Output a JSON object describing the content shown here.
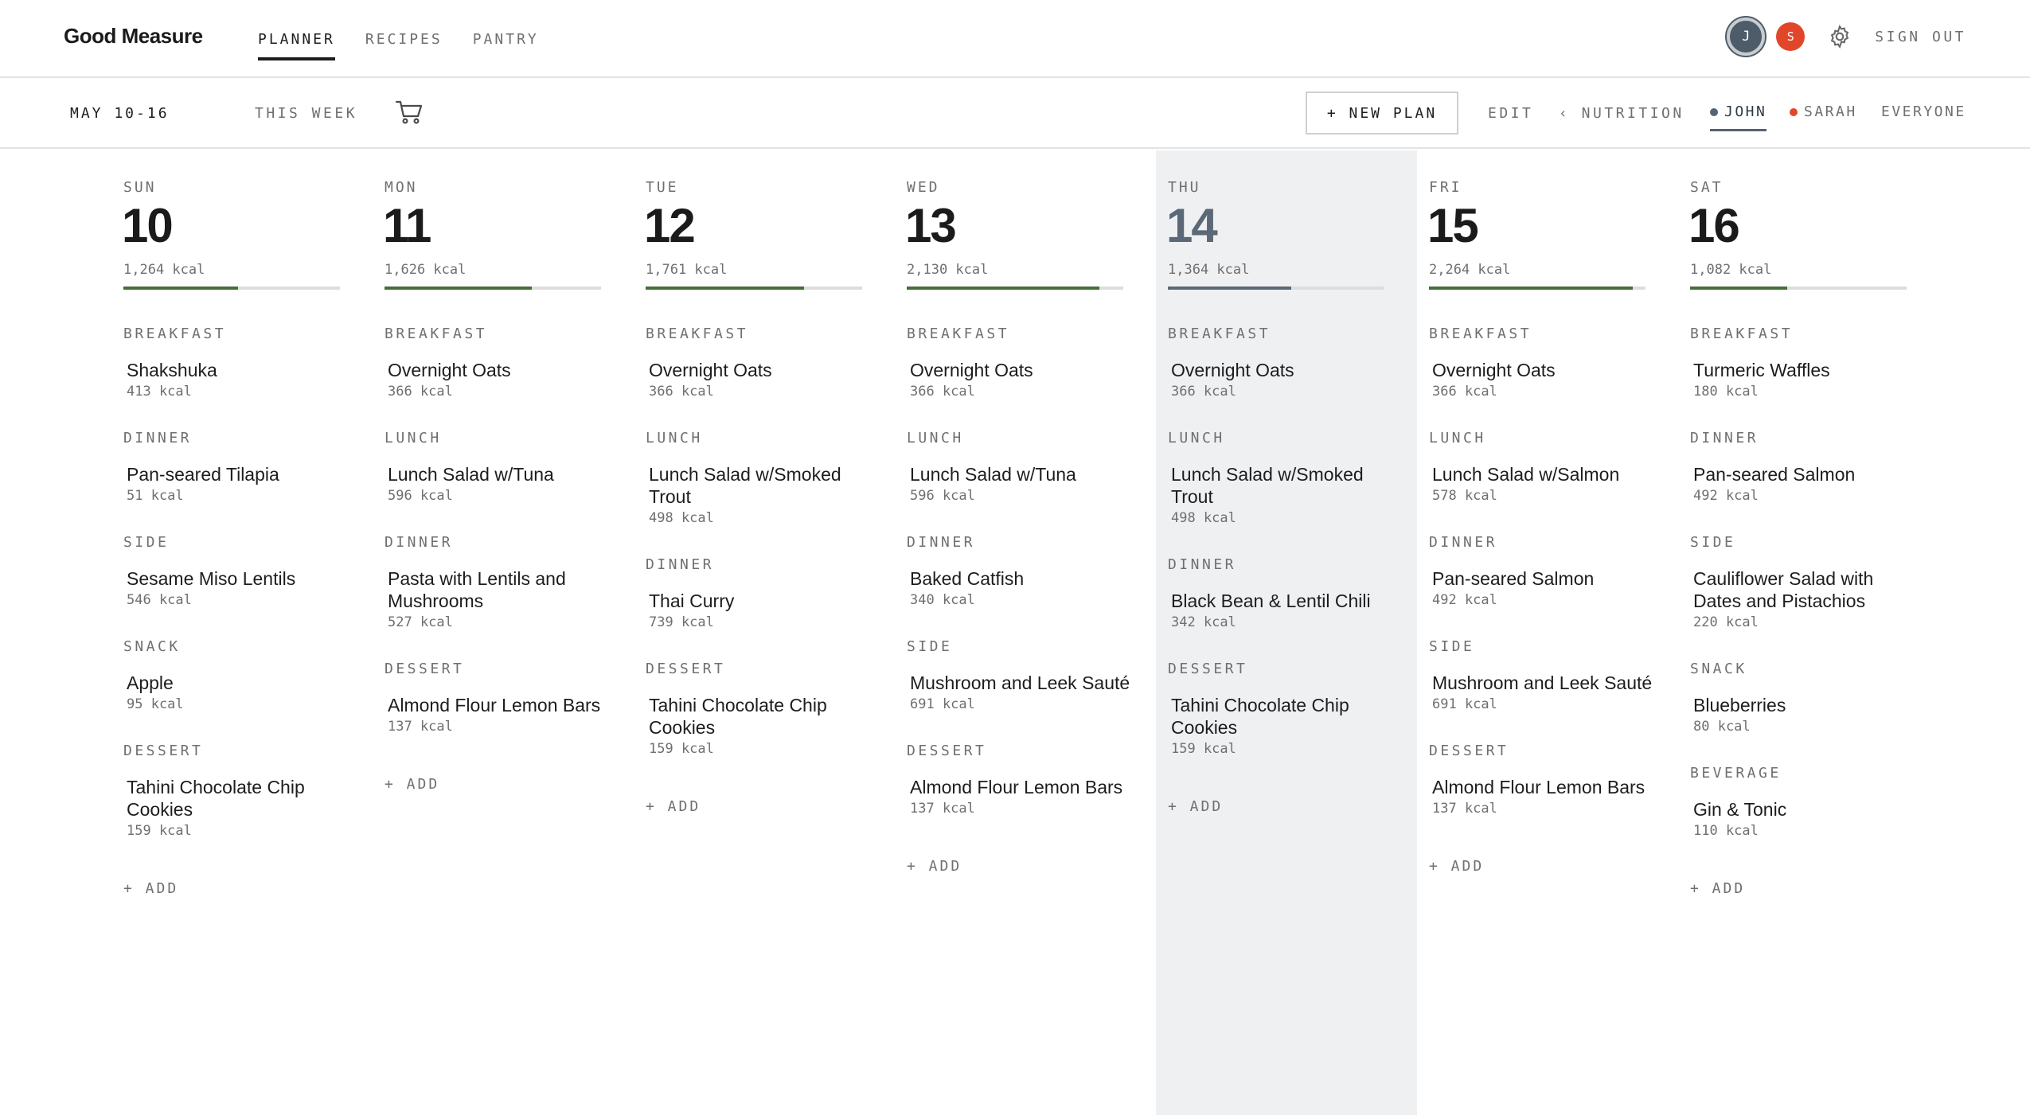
{
  "app": {
    "brand": "Good Measure"
  },
  "nav": {
    "tabs": [
      "PLANNER",
      "RECIPES",
      "PANTRY"
    ],
    "active": "PLANNER"
  },
  "user": {
    "avatars": [
      {
        "initial": "J",
        "color": "#4e5b68"
      },
      {
        "initial": "S",
        "color": "#e2462a"
      }
    ],
    "sign_out": "SIGN OUT"
  },
  "toolbar": {
    "date_range": "MAY 10-16",
    "this_week": "THIS WEEK",
    "new_plan": "+ NEW PLAN",
    "edit": "EDIT",
    "nutrition": "‹ NUTRITION",
    "people": [
      {
        "name": "JOHN",
        "dot_color": "#556372",
        "active": true
      },
      {
        "name": "SARAH",
        "dot_color": "#e2462a",
        "active": false
      },
      {
        "name": "EVERYONE",
        "dot_color": null,
        "active": false
      }
    ]
  },
  "add_label": "+ ADD",
  "days": [
    {
      "dow": "SUN",
      "num": "10",
      "kcal": "1,264 kcal",
      "progress": 0.53,
      "today": false,
      "meals": [
        {
          "label": "BREAKFAST",
          "items": [
            {
              "name": "Shakshuka",
              "kcal": "413 kcal"
            }
          ]
        },
        {
          "label": "DINNER",
          "items": [
            {
              "name": "Pan-seared Tilapia",
              "kcal": "51 kcal"
            }
          ]
        },
        {
          "label": "SIDE",
          "items": [
            {
              "name": "Sesame Miso Lentils",
              "kcal": "546 kcal"
            }
          ]
        },
        {
          "label": "SNACK",
          "items": [
            {
              "name": "Apple",
              "kcal": "95 kcal"
            }
          ]
        },
        {
          "label": "DESSERT",
          "items": [
            {
              "name": "Tahini Chocolate Chip Cookies",
              "kcal": "159 kcal"
            }
          ]
        }
      ]
    },
    {
      "dow": "MON",
      "num": "11",
      "kcal": "1,626 kcal",
      "progress": 0.68,
      "today": false,
      "meals": [
        {
          "label": "BREAKFAST",
          "items": [
            {
              "name": "Overnight Oats",
              "kcal": "366 kcal"
            }
          ]
        },
        {
          "label": "LUNCH",
          "items": [
            {
              "name": "Lunch Salad w/Tuna",
              "kcal": "596 kcal"
            }
          ]
        },
        {
          "label": "DINNER",
          "items": [
            {
              "name": "Pasta with Lentils and Mushrooms",
              "kcal": "527 kcal"
            }
          ]
        },
        {
          "label": "DESSERT",
          "items": [
            {
              "name": "Almond Flour Lemon Bars",
              "kcal": "137 kcal"
            }
          ]
        }
      ]
    },
    {
      "dow": "TUE",
      "num": "12",
      "kcal": "1,761 kcal",
      "progress": 0.73,
      "today": false,
      "meals": [
        {
          "label": "BREAKFAST",
          "items": [
            {
              "name": "Overnight Oats",
              "kcal": "366 kcal"
            }
          ]
        },
        {
          "label": "LUNCH",
          "items": [
            {
              "name": "Lunch Salad w/Smoked Trout",
              "kcal": "498 kcal"
            }
          ]
        },
        {
          "label": "DINNER",
          "items": [
            {
              "name": "Thai Curry",
              "kcal": "739 kcal"
            }
          ]
        },
        {
          "label": "DESSERT",
          "items": [
            {
              "name": "Tahini Chocolate Chip Cookies",
              "kcal": "159 kcal"
            }
          ]
        }
      ]
    },
    {
      "dow": "WED",
      "num": "13",
      "kcal": "2,130 kcal",
      "progress": 0.89,
      "today": false,
      "meals": [
        {
          "label": "BREAKFAST",
          "items": [
            {
              "name": "Overnight Oats",
              "kcal": "366 kcal"
            }
          ]
        },
        {
          "label": "LUNCH",
          "items": [
            {
              "name": "Lunch Salad w/Tuna",
              "kcal": "596 kcal"
            }
          ]
        },
        {
          "label": "DINNER",
          "items": [
            {
              "name": "Baked Catfish",
              "kcal": "340 kcal"
            }
          ]
        },
        {
          "label": "SIDE",
          "items": [
            {
              "name": "Mushroom and Leek Sauté",
              "kcal": "691 kcal"
            }
          ]
        },
        {
          "label": "DESSERT",
          "items": [
            {
              "name": "Almond Flour Lemon Bars",
              "kcal": "137 kcal"
            }
          ]
        }
      ]
    },
    {
      "dow": "THU",
      "num": "14",
      "kcal": "1,364 kcal",
      "progress": 0.57,
      "today": true,
      "meals": [
        {
          "label": "BREAKFAST",
          "items": [
            {
              "name": "Overnight Oats",
              "kcal": "366 kcal"
            }
          ]
        },
        {
          "label": "LUNCH",
          "items": [
            {
              "name": "Lunch Salad w/Smoked Trout",
              "kcal": "498 kcal"
            }
          ]
        },
        {
          "label": "DINNER",
          "items": [
            {
              "name": "Black Bean & Lentil Chili",
              "kcal": "342 kcal"
            }
          ]
        },
        {
          "label": "DESSERT",
          "items": [
            {
              "name": "Tahini Chocolate Chip Cookies",
              "kcal": "159 kcal"
            }
          ]
        }
      ]
    },
    {
      "dow": "FRI",
      "num": "15",
      "kcal": "2,264 kcal",
      "progress": 0.94,
      "today": false,
      "meals": [
        {
          "label": "BREAKFAST",
          "items": [
            {
              "name": "Overnight Oats",
              "kcal": "366 kcal"
            }
          ]
        },
        {
          "label": "LUNCH",
          "items": [
            {
              "name": "Lunch Salad w/Salmon",
              "kcal": "578 kcal"
            }
          ]
        },
        {
          "label": "DINNER",
          "items": [
            {
              "name": "Pan-seared Salmon",
              "kcal": "492 kcal"
            }
          ]
        },
        {
          "label": "SIDE",
          "items": [
            {
              "name": "Mushroom and Leek Sauté",
              "kcal": "691 kcal"
            }
          ]
        },
        {
          "label": "DESSERT",
          "items": [
            {
              "name": "Almond Flour Lemon Bars",
              "kcal": "137 kcal"
            }
          ]
        }
      ]
    },
    {
      "dow": "SAT",
      "num": "16",
      "kcal": "1,082 kcal",
      "progress": 0.45,
      "today": false,
      "meals": [
        {
          "label": "BREAKFAST",
          "items": [
            {
              "name": "Turmeric Waffles",
              "kcal": "180 kcal"
            }
          ]
        },
        {
          "label": "DINNER",
          "items": [
            {
              "name": "Pan-seared Salmon",
              "kcal": "492 kcal"
            }
          ]
        },
        {
          "label": "SIDE",
          "items": [
            {
              "name": "Cauliflower Salad with Dates and Pistachios",
              "kcal": "220 kcal"
            }
          ]
        },
        {
          "label": "SNACK",
          "items": [
            {
              "name": "Blueberries",
              "kcal": "80 kcal"
            }
          ]
        },
        {
          "label": "BEVERAGE",
          "items": [
            {
              "name": "Gin & Tonic",
              "kcal": "110 kcal"
            }
          ]
        }
      ]
    }
  ]
}
